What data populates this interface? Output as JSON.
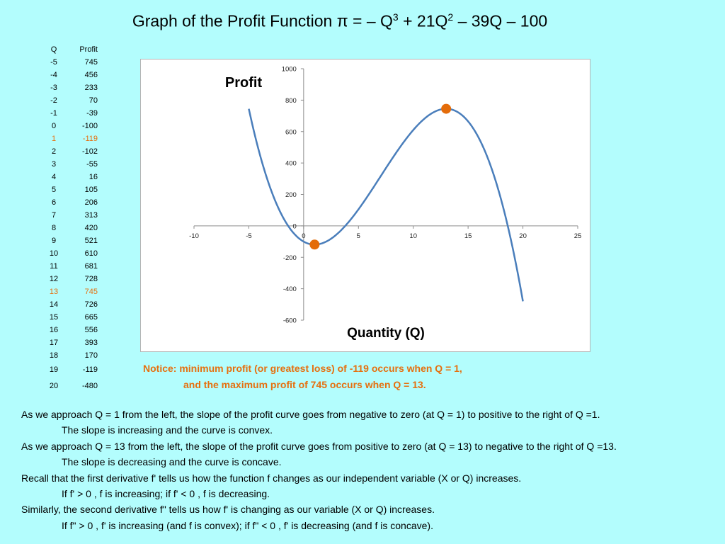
{
  "title": {
    "main": "Graph of the Profit Function π = – Q",
    "exp1": "3",
    "mid": " + 21Q",
    "exp2": "2",
    "tail": " – 39Q – 100"
  },
  "table": {
    "header_q": "Q",
    "header_profit": "Profit",
    "rows": [
      {
        "q": "-5",
        "profit": "745"
      },
      {
        "q": "-4",
        "profit": "456"
      },
      {
        "q": "-3",
        "profit": "233"
      },
      {
        "q": "-2",
        "profit": "70"
      },
      {
        "q": "-1",
        "profit": "-39"
      },
      {
        "q": "0",
        "profit": "-100"
      },
      {
        "q": "1",
        "profit": "-119"
      },
      {
        "q": "2",
        "profit": "-102"
      },
      {
        "q": "3",
        "profit": "-55"
      },
      {
        "q": "4",
        "profit": "16"
      },
      {
        "q": "5",
        "profit": "105"
      },
      {
        "q": "6",
        "profit": "206"
      },
      {
        "q": "7",
        "profit": "313"
      },
      {
        "q": "8",
        "profit": "420"
      },
      {
        "q": "9",
        "profit": "521"
      },
      {
        "q": "10",
        "profit": "610"
      },
      {
        "q": "11",
        "profit": "681"
      },
      {
        "q": "12",
        "profit": "728"
      },
      {
        "q": "13",
        "profit": "745"
      },
      {
        "q": "14",
        "profit": "726"
      },
      {
        "q": "15",
        "profit": "665"
      },
      {
        "q": "16",
        "profit": "556"
      },
      {
        "q": "17",
        "profit": "393"
      },
      {
        "q": "18",
        "profit": "170"
      },
      {
        "q": "19",
        "profit": "-119"
      },
      {
        "q": "20",
        "profit": "-480"
      }
    ],
    "highlight_color": "#e66f0e"
  },
  "chart_data": {
    "type": "line",
    "title": "Profit",
    "xlabel": "Quantity (Q)",
    "ylabel": "",
    "xlim": [
      -10,
      25
    ],
    "ylim": [
      -600,
      1000
    ],
    "xticks": [
      "-10",
      "-5",
      "0",
      "5",
      "10",
      "15",
      "20",
      "25"
    ],
    "yticks": [
      "1000",
      "800",
      "600",
      "400",
      "200",
      "0",
      "-200",
      "-400",
      "-600"
    ],
    "grid": false,
    "series": [
      {
        "x": [
          -5,
          -4,
          -3,
          -2,
          -1,
          0,
          1,
          2,
          3,
          4,
          5,
          6,
          7,
          8,
          9,
          10,
          11,
          12,
          13,
          14,
          15,
          16,
          17,
          18,
          19,
          20
        ],
        "values": [
          745,
          456,
          233,
          70,
          -39,
          -100,
          -119,
          -102,
          -55,
          16,
          105,
          206,
          313,
          420,
          521,
          610,
          681,
          728,
          745,
          726,
          665,
          556,
          393,
          170,
          -119,
          -480
        ],
        "color": "#4a7ebb"
      }
    ],
    "markers": [
      {
        "x": 1,
        "y": -119,
        "color": "#e46c0a"
      },
      {
        "x": 13,
        "y": 745,
        "color": "#e46c0a"
      }
    ]
  },
  "notice": {
    "line1": "Notice:  minimum profit (or greatest loss)  of -119 occurs when Q = 1,",
    "line2": "and the maximum profit of 745 occurs when Q = 13."
  },
  "explanation": [
    "As we approach Q = 1 from the left, the slope of the profit curve goes from negative to zero (at Q = 1) to positive to the right of Q =1.",
    "The slope is increasing and the curve is convex.",
    "As we approach Q = 13 from the left, the slope of the profit curve goes from positive  to zero (at Q = 13) to negative to the right of Q =13.",
    "The slope is decreasing and the curve is concave.",
    "Recall that the first derivative f' tells us how the function f changes as our independent variable (X or Q) increases.",
    "If  f' > 0 ,  f is increasing;    if  f' < 0 ,  f is decreasing.",
    "Similarly, the second derivative f\" tells us how f' is changing as our variable (X or Q) increases.",
    "If  f\" > 0 ,  f'  is increasing (and f is convex);    if  f\" < 0 ,  f' is decreasing (and f is concave)."
  ]
}
